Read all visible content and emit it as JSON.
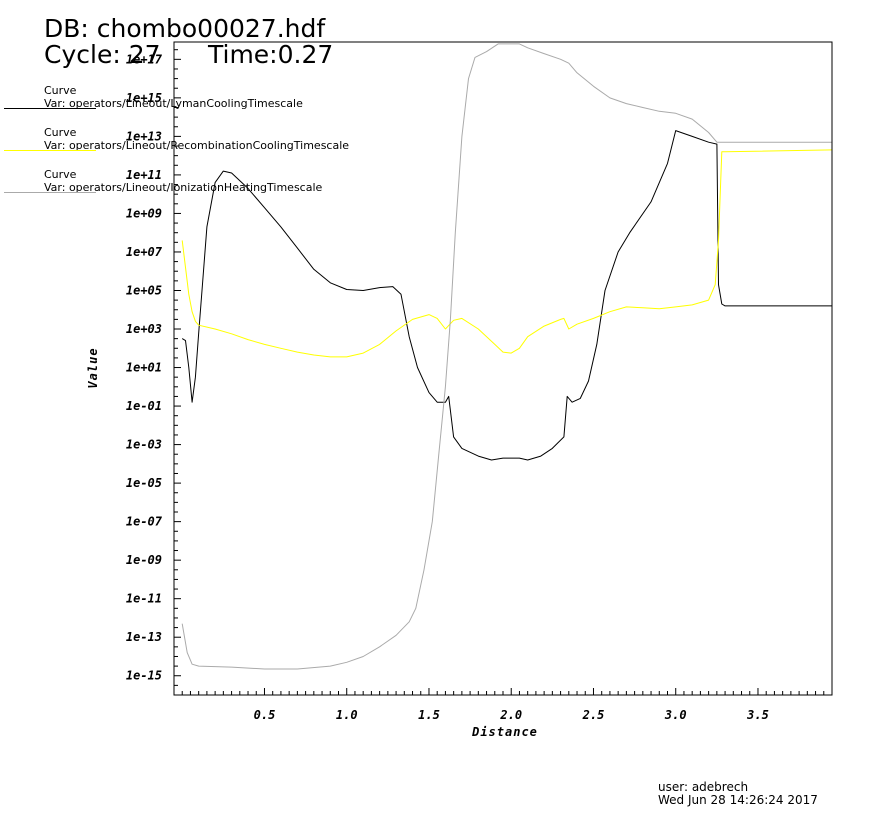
{
  "header": {
    "db": "DB: chombo00027.hdf",
    "cycle": "Cycle: 27",
    "time": "Time:0.27"
  },
  "legend": [
    {
      "title": "Curve",
      "var": "Var: operators/Lineout/LymanCoolingTimescale",
      "color": "#000000"
    },
    {
      "title": "Curve",
      "var": "Var: operators/Lineout/RecombinationCoolingTimescale",
      "color": "#ffff00"
    },
    {
      "title": "Curve",
      "var": "Var: operators/Lineout/IonizationHeatingTimescale",
      "color": "#aaaaaa"
    }
  ],
  "footer": {
    "user": "user: adebrech",
    "date": "Wed Jun 28 14:26:24 2017"
  },
  "chart_data": {
    "type": "line",
    "xlabel": "Distance",
    "ylabel": "Value",
    "xlim": [
      -0.05,
      3.95
    ],
    "ylim_log10": [
      -16,
      17.9
    ],
    "yscale": "log",
    "x_ticks": [
      {
        "v": 0.5,
        "label": "0.5"
      },
      {
        "v": 1.0,
        "label": "1.0"
      },
      {
        "v": 1.5,
        "label": "1.5"
      },
      {
        "v": 2.0,
        "label": "2.0"
      },
      {
        "v": 2.5,
        "label": "2.5"
      },
      {
        "v": 3.0,
        "label": "3.0"
      },
      {
        "v": 3.5,
        "label": "3.5"
      }
    ],
    "y_ticks": [
      {
        "e": 17,
        "label": "1e+17"
      },
      {
        "e": 15,
        "label": "1e+15"
      },
      {
        "e": 13,
        "label": "1e+13"
      },
      {
        "e": 11,
        "label": "1e+11"
      },
      {
        "e": 9,
        "label": "1e+09"
      },
      {
        "e": 7,
        "label": "1e+07"
      },
      {
        "e": 5,
        "label": "1e+05"
      },
      {
        "e": 3,
        "label": "1e+03"
      },
      {
        "e": 1,
        "label": "1e+01"
      },
      {
        "e": -1,
        "label": "1e-01"
      },
      {
        "e": -3,
        "label": "1e-03"
      },
      {
        "e": -5,
        "label": "1e-05"
      },
      {
        "e": -7,
        "label": "1e-07"
      },
      {
        "e": -9,
        "label": "1e-09"
      },
      {
        "e": -11,
        "label": "1e-11"
      },
      {
        "e": -13,
        "label": "1e-13"
      },
      {
        "e": -15,
        "label": "1e-15"
      }
    ],
    "series": [
      {
        "name": "LymanCoolingTimescale",
        "color": "#000000",
        "points": [
          [
            0.0,
            2.5
          ],
          [
            0.02,
            2.4
          ],
          [
            0.04,
            1.0
          ],
          [
            0.06,
            -0.8
          ],
          [
            0.08,
            0.5
          ],
          [
            0.1,
            2.8
          ],
          [
            0.12,
            5.0
          ],
          [
            0.15,
            8.3
          ],
          [
            0.2,
            10.6
          ],
          [
            0.25,
            11.2
          ],
          [
            0.3,
            11.1
          ],
          [
            0.4,
            10.3
          ],
          [
            0.5,
            9.3
          ],
          [
            0.6,
            8.3
          ],
          [
            0.7,
            7.2
          ],
          [
            0.8,
            6.1
          ],
          [
            0.9,
            5.4
          ],
          [
            1.0,
            5.05
          ],
          [
            1.1,
            5.0
          ],
          [
            1.2,
            5.15
          ],
          [
            1.28,
            5.2
          ],
          [
            1.33,
            4.8
          ],
          [
            1.38,
            2.6
          ],
          [
            1.43,
            1.0
          ],
          [
            1.5,
            -0.3
          ],
          [
            1.55,
            -0.8
          ],
          [
            1.6,
            -0.8
          ],
          [
            1.62,
            -0.5
          ],
          [
            1.65,
            -2.6
          ],
          [
            1.7,
            -3.2
          ],
          [
            1.8,
            -3.6
          ],
          [
            1.88,
            -3.8
          ],
          [
            1.95,
            -3.7
          ],
          [
            2.05,
            -3.7
          ],
          [
            2.1,
            -3.8
          ],
          [
            2.18,
            -3.6
          ],
          [
            2.25,
            -3.2
          ],
          [
            2.32,
            -2.6
          ],
          [
            2.34,
            -0.5
          ],
          [
            2.37,
            -0.8
          ],
          [
            2.42,
            -0.6
          ],
          [
            2.47,
            0.3
          ],
          [
            2.52,
            2.2
          ],
          [
            2.57,
            5.0
          ],
          [
            2.65,
            7.0
          ],
          [
            2.72,
            8.0
          ],
          [
            2.85,
            9.6
          ],
          [
            2.95,
            11.6
          ],
          [
            3.0,
            13.3
          ],
          [
            3.1,
            13.0
          ],
          [
            3.2,
            12.7
          ],
          [
            3.25,
            12.6
          ],
          [
            3.26,
            5.3
          ],
          [
            3.28,
            4.3
          ],
          [
            3.3,
            4.2
          ],
          [
            3.95,
            4.2
          ]
        ]
      },
      {
        "name": "RecombinationCoolingTimescale",
        "color": "#ffff00",
        "points": [
          [
            0.0,
            7.6
          ],
          [
            0.02,
            6.2
          ],
          [
            0.04,
            4.8
          ],
          [
            0.06,
            3.9
          ],
          [
            0.08,
            3.4
          ],
          [
            0.1,
            3.2
          ],
          [
            0.2,
            3.0
          ],
          [
            0.3,
            2.75
          ],
          [
            0.4,
            2.45
          ],
          [
            0.5,
            2.2
          ],
          [
            0.6,
            2.0
          ],
          [
            0.7,
            1.8
          ],
          [
            0.8,
            1.65
          ],
          [
            0.9,
            1.55
          ],
          [
            1.0,
            1.55
          ],
          [
            1.1,
            1.75
          ],
          [
            1.2,
            2.2
          ],
          [
            1.3,
            2.9
          ],
          [
            1.4,
            3.5
          ],
          [
            1.5,
            3.75
          ],
          [
            1.55,
            3.55
          ],
          [
            1.6,
            3.0
          ],
          [
            1.65,
            3.45
          ],
          [
            1.7,
            3.55
          ],
          [
            1.8,
            3.0
          ],
          [
            1.9,
            2.2
          ],
          [
            1.95,
            1.8
          ],
          [
            2.0,
            1.75
          ],
          [
            2.05,
            2.0
          ],
          [
            2.1,
            2.6
          ],
          [
            2.2,
            3.15
          ],
          [
            2.3,
            3.5
          ],
          [
            2.32,
            3.55
          ],
          [
            2.35,
            3.0
          ],
          [
            2.4,
            3.25
          ],
          [
            2.5,
            3.55
          ],
          [
            2.6,
            3.9
          ],
          [
            2.7,
            4.15
          ],
          [
            2.8,
            4.1
          ],
          [
            2.9,
            4.05
          ],
          [
            3.0,
            4.15
          ],
          [
            3.1,
            4.25
          ],
          [
            3.2,
            4.5
          ],
          [
            3.24,
            5.3
          ],
          [
            3.26,
            7.6
          ],
          [
            3.28,
            12.2
          ],
          [
            3.3,
            12.2
          ],
          [
            3.95,
            12.3
          ]
        ]
      },
      {
        "name": "IonizationHeatingTimescale",
        "color": "#aaaaaa",
        "points": [
          [
            0.0,
            -12.3
          ],
          [
            0.03,
            -13.8
          ],
          [
            0.06,
            -14.4
          ],
          [
            0.1,
            -14.5
          ],
          [
            0.3,
            -14.55
          ],
          [
            0.5,
            -14.65
          ],
          [
            0.7,
            -14.65
          ],
          [
            0.9,
            -14.5
          ],
          [
            1.0,
            -14.3
          ],
          [
            1.1,
            -14.0
          ],
          [
            1.2,
            -13.5
          ],
          [
            1.3,
            -12.9
          ],
          [
            1.38,
            -12.2
          ],
          [
            1.42,
            -11.5
          ],
          [
            1.47,
            -9.5
          ],
          [
            1.52,
            -7.0
          ],
          [
            1.56,
            -3.5
          ],
          [
            1.6,
            0.0
          ],
          [
            1.63,
            3.5
          ],
          [
            1.66,
            8.0
          ],
          [
            1.7,
            13.0
          ],
          [
            1.74,
            16.0
          ],
          [
            1.78,
            17.1
          ],
          [
            1.85,
            17.4
          ],
          [
            1.92,
            17.8
          ],
          [
            2.0,
            17.8
          ],
          [
            2.05,
            17.8
          ],
          [
            2.1,
            17.6
          ],
          [
            2.2,
            17.3
          ],
          [
            2.3,
            17.0
          ],
          [
            2.35,
            16.8
          ],
          [
            2.4,
            16.3
          ],
          [
            2.5,
            15.6
          ],
          [
            2.6,
            15.0
          ],
          [
            2.7,
            14.7
          ],
          [
            2.8,
            14.5
          ],
          [
            2.9,
            14.3
          ],
          [
            3.0,
            14.2
          ],
          [
            3.1,
            13.9
          ],
          [
            3.2,
            13.2
          ],
          [
            3.25,
            12.7
          ],
          [
            3.95,
            12.7
          ]
        ]
      }
    ]
  }
}
